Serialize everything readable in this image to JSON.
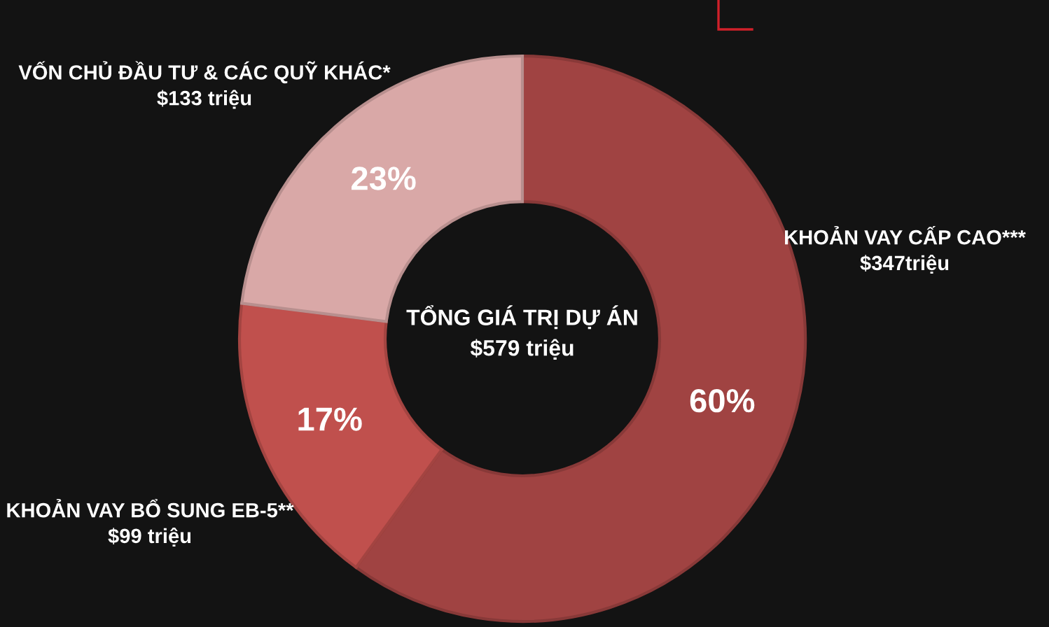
{
  "chart_data": {
    "type": "donut",
    "categories": [
      "KHOẢN VAY CẤP CAO***\n$347triệu",
      "KHOẢN VAY BỔ SUNG EB-5**\n$99 triệu",
      "VỐN CHỦ ĐẦU TƯ & CÁC QUỸ KHÁC*\n$133 triệu"
    ],
    "values": [
      60,
      17,
      23
    ],
    "colors": [
      "#a04342",
      "#c0504d",
      "#d9a8a7"
    ],
    "value_labels": [
      "60%",
      "17%",
      "23%"
    ],
    "annotations": [
      "TỔNG GIÁ TRỊ DỰ ÁN\n$579 triệu"
    ]
  }
}
